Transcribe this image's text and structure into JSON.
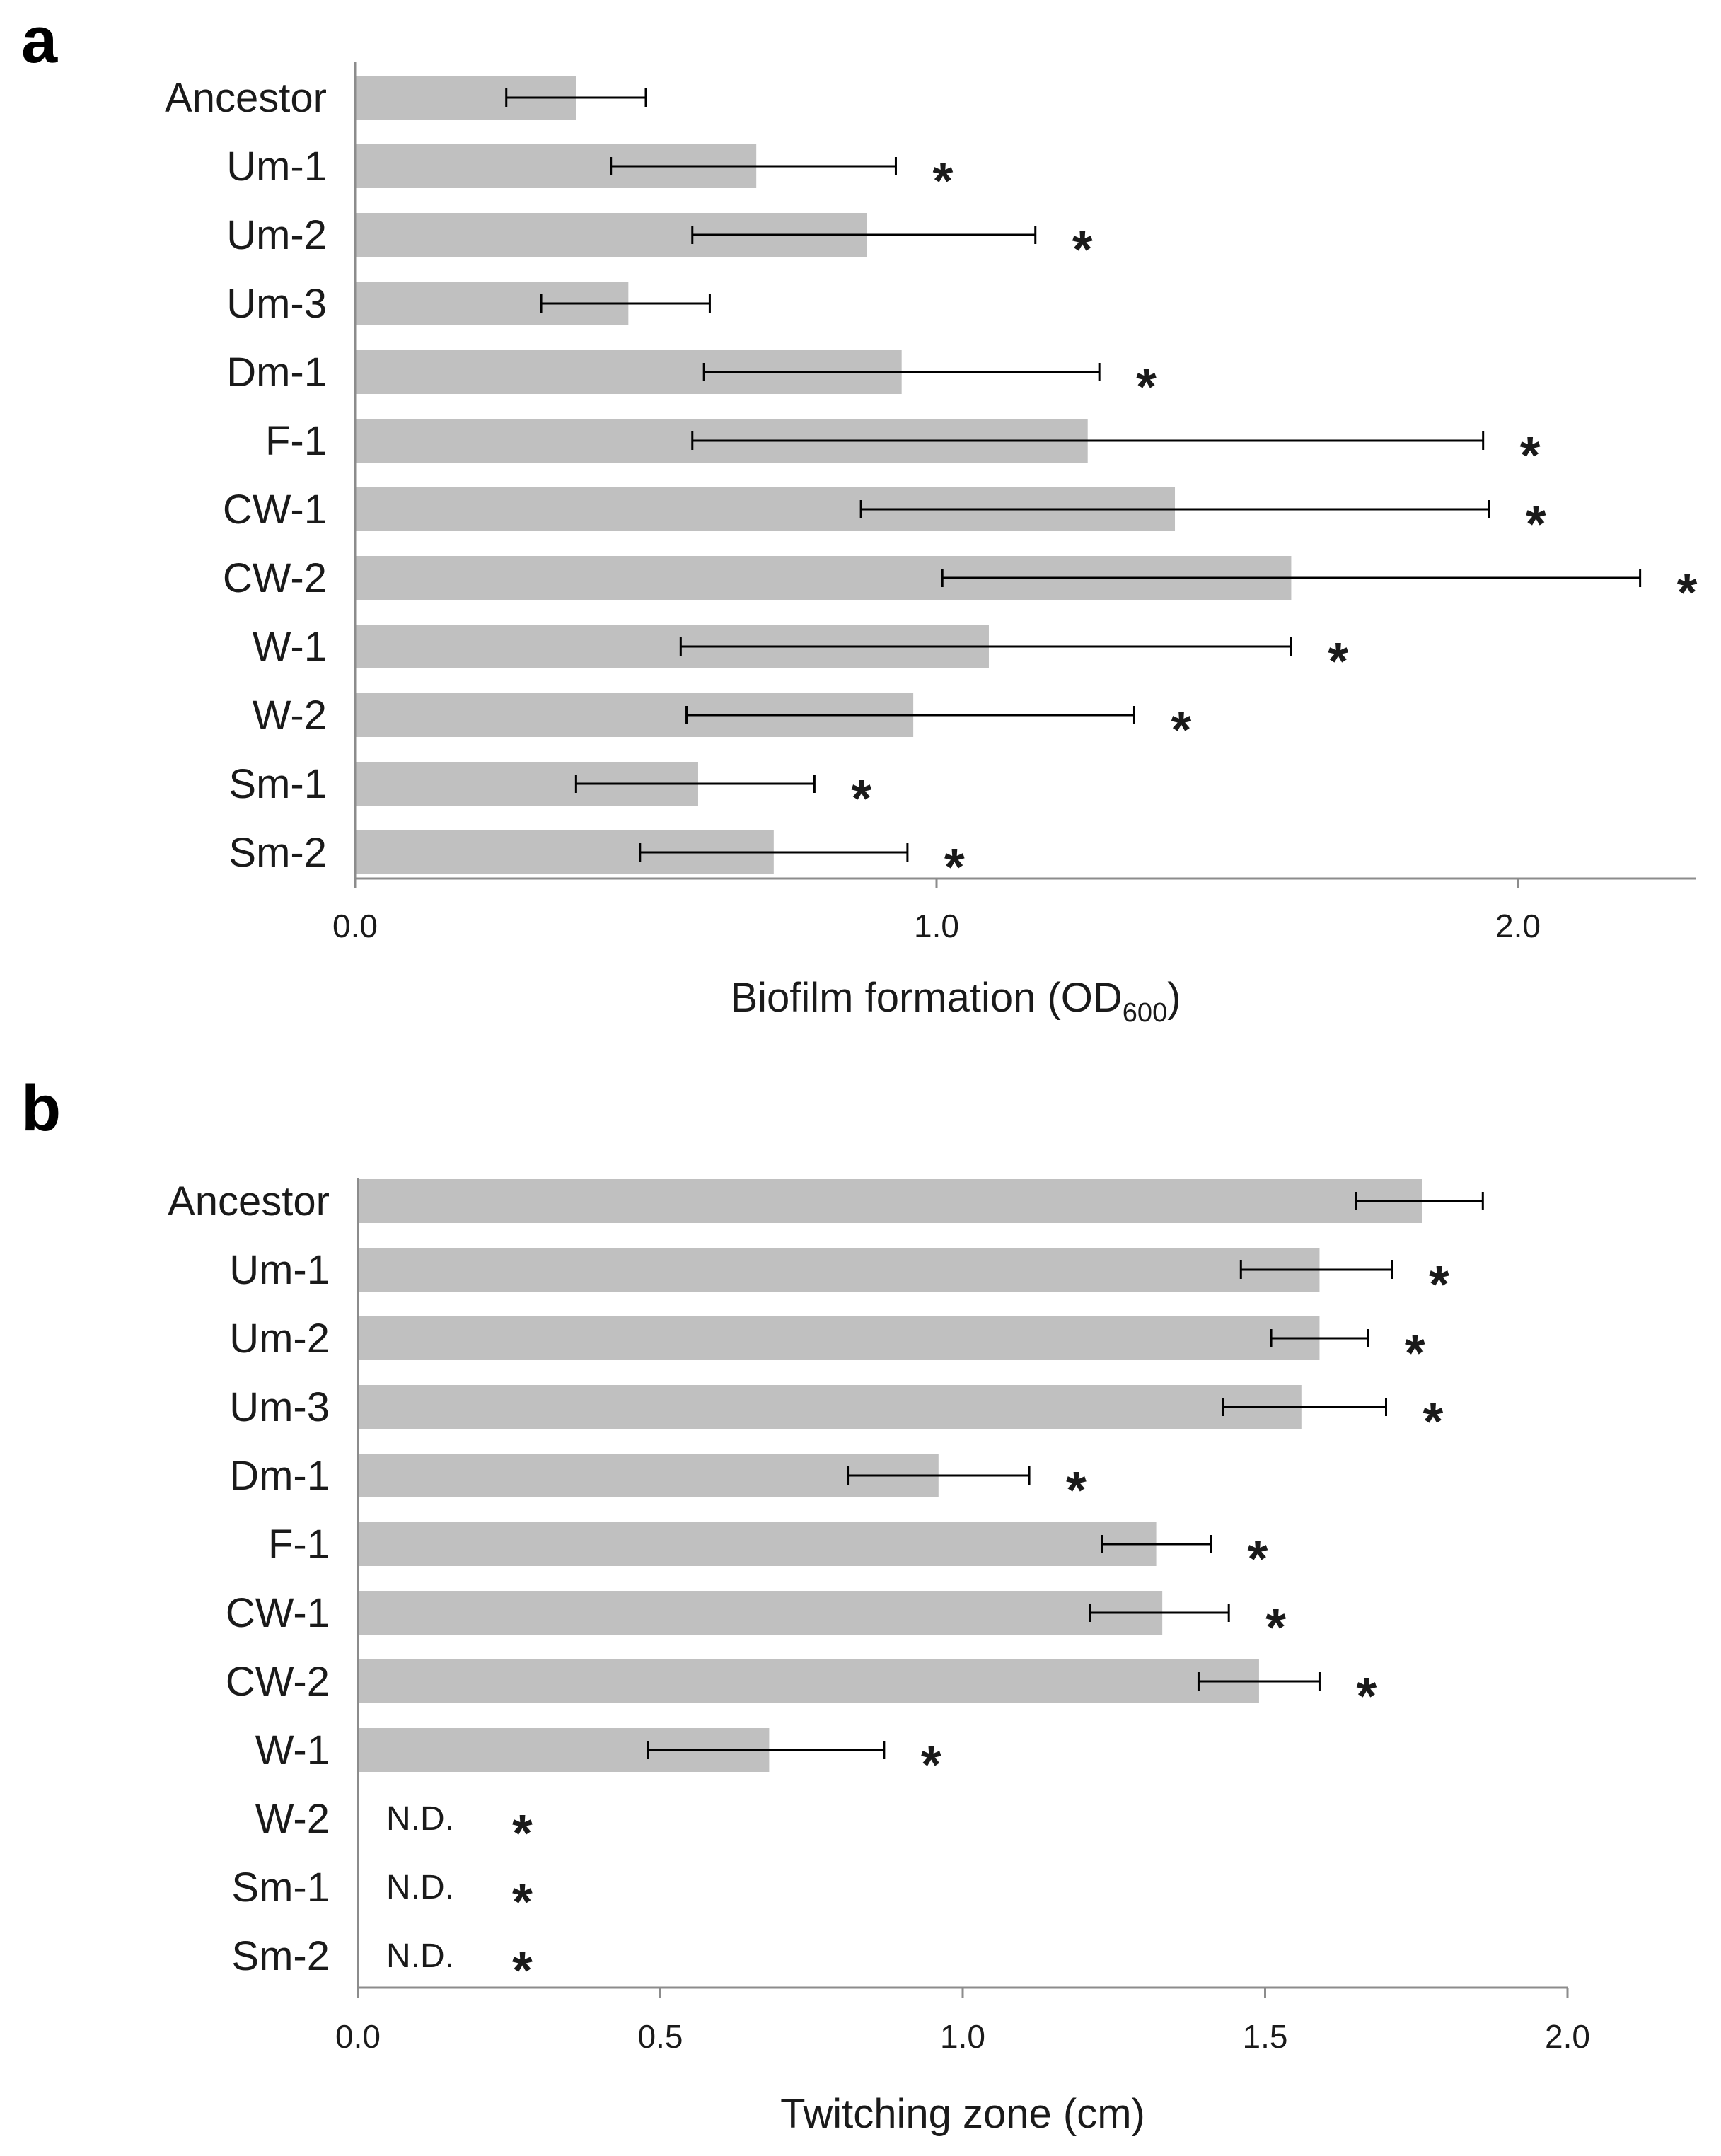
{
  "colors": {
    "bar": "#c0c0c0",
    "axis": "#8c8c8c",
    "error_bar": "#000000",
    "text": "#1a1a1a"
  },
  "chart_data": [
    {
      "panel_label": "a",
      "type": "bar",
      "orientation": "horizontal",
      "title": "",
      "xlabel": "Biofilm formation (OD",
      "xlabel_subscript": "600",
      "xlabel_suffix": ")",
      "ylabel": "",
      "xlim": [
        0,
        2.3
      ],
      "xticks": [
        0,
        1,
        2
      ],
      "xtick_labels": [
        "0.0",
        "1.0",
        "2.0"
      ],
      "grid": false,
      "categories": [
        "Ancestor",
        "Um-1",
        "Um-2",
        "Um-3",
        "Dm-1",
        "F-1",
        "CW-1",
        "CW-2",
        "W-1",
        "W-2",
        "Sm-1",
        "Sm-2"
      ],
      "values": [
        0.38,
        0.69,
        0.88,
        0.47,
        0.94,
        1.26,
        1.41,
        1.61,
        1.09,
        0.96,
        0.59,
        0.72
      ],
      "error_low": [
        0.26,
        0.44,
        0.58,
        0.32,
        0.6,
        0.58,
        0.87,
        1.01,
        0.56,
        0.57,
        0.38,
        0.49
      ],
      "error_high": [
        0.5,
        0.93,
        1.17,
        0.61,
        1.28,
        1.94,
        1.95,
        2.21,
        1.61,
        1.34,
        0.79,
        0.95
      ],
      "significance": [
        "",
        "*",
        "*",
        "",
        "*",
        "*",
        "*",
        "*",
        "*",
        "*",
        "*",
        "*"
      ],
      "not_determined": [
        false,
        false,
        false,
        false,
        false,
        false,
        false,
        false,
        false,
        false,
        false,
        false
      ],
      "nd_label": "N.D."
    },
    {
      "panel_label": "b",
      "type": "bar",
      "orientation": "horizontal",
      "title": "",
      "xlabel": "Twitching zone (cm)",
      "xlabel_subscript": "",
      "xlabel_suffix": "",
      "ylabel": "",
      "xlim": [
        0,
        2.0
      ],
      "xticks": [
        0,
        0.5,
        1.0,
        1.5,
        2.0
      ],
      "xtick_labels": [
        "0.0",
        "0.5",
        "1.0",
        "1.5",
        "2.0"
      ],
      "grid": false,
      "categories": [
        "Ancestor",
        "Um-1",
        "Um-2",
        "Um-3",
        "Dm-1",
        "F-1",
        "CW-1",
        "CW-2",
        "W-1",
        "W-2",
        "Sm-1",
        "Sm-2"
      ],
      "values": [
        1.76,
        1.59,
        1.59,
        1.56,
        0.96,
        1.32,
        1.33,
        1.49,
        0.68,
        0,
        0,
        0
      ],
      "error_low": [
        1.65,
        1.46,
        1.51,
        1.43,
        0.81,
        1.23,
        1.21,
        1.39,
        0.48,
        null,
        null,
        null
      ],
      "error_high": [
        1.86,
        1.71,
        1.67,
        1.7,
        1.11,
        1.41,
        1.44,
        1.59,
        0.87,
        null,
        null,
        null
      ],
      "significance": [
        "",
        "*",
        "*",
        "*",
        "*",
        "*",
        "*",
        "*",
        "*",
        "*",
        "*",
        "*"
      ],
      "not_determined": [
        false,
        false,
        false,
        false,
        false,
        false,
        false,
        false,
        false,
        true,
        true,
        true
      ],
      "nd_label": "N.D."
    }
  ]
}
